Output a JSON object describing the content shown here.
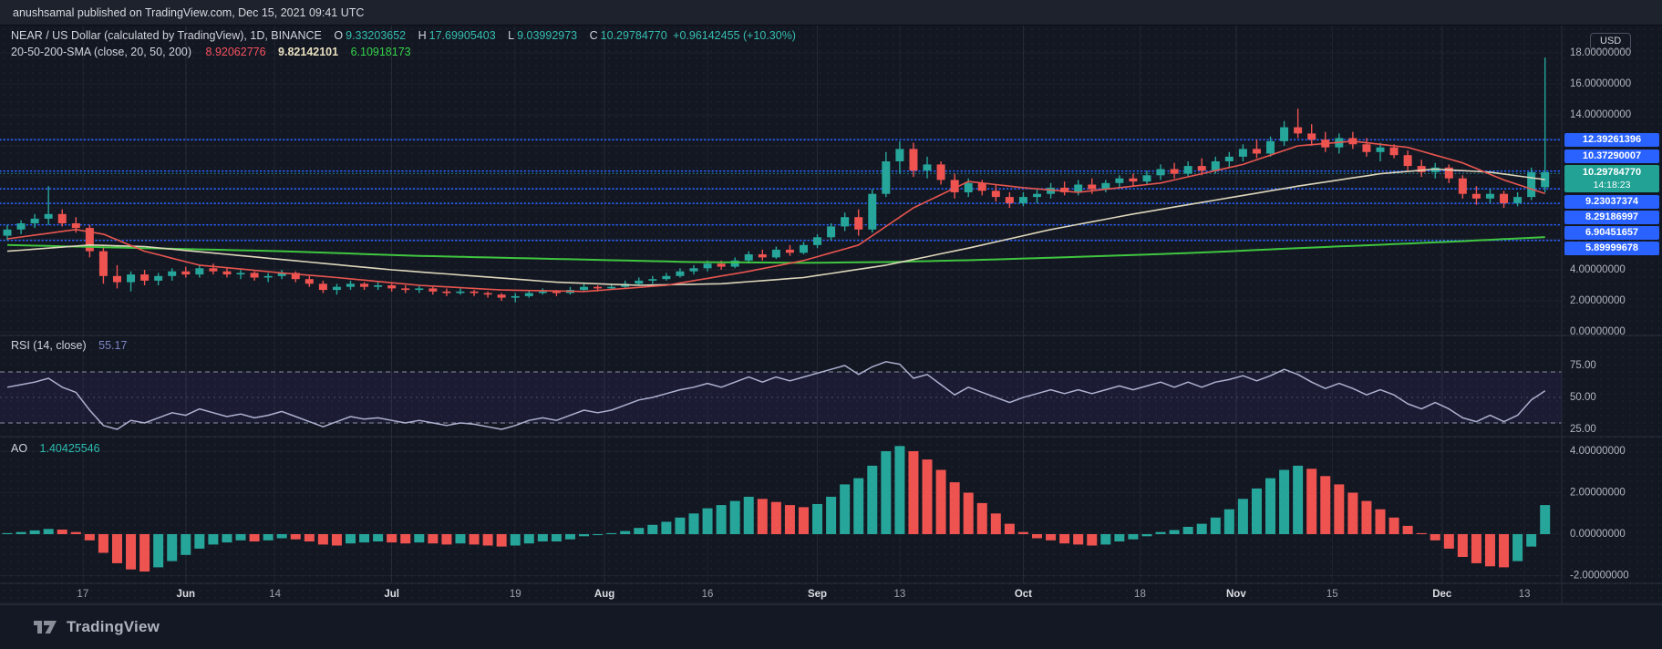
{
  "meta": {
    "published_line": "anushsamal published on TradingView.com, Dec 15, 2021 09:41 UTC"
  },
  "header": {
    "symbol_title": "NEAR / US Dollar (calculated by TradingView), 1D, BINANCE",
    "o_label": "O",
    "o": "9.33203652",
    "h_label": "H",
    "h": "17.69905403",
    "l_label": "L",
    "l": "9.03992973",
    "c_label": "C",
    "c": "10.29784770",
    "change": "+0.96142455 (+10.30%)",
    "sma_title": "20-50-200-SMA (close, 20, 50, 200)",
    "sma20": "8.92062776",
    "sma50": "9.82142101",
    "sma200": "6.10918173"
  },
  "axis": {
    "currency_button": "USD",
    "price_labels": [
      {
        "text": "18.00000000",
        "value": 18
      },
      {
        "text": "16.00000000",
        "value": 16
      },
      {
        "text": "14.00000000",
        "value": 14
      },
      {
        "text": "4.00000000",
        "value": 4
      },
      {
        "text": "2.00000000",
        "value": 2
      },
      {
        "text": "0.00000000",
        "value": 0
      }
    ],
    "price_lines": [
      {
        "text": "12.39261396",
        "value": 12.39261396
      },
      {
        "text": "10.37290007",
        "value": 10.37290007
      },
      {
        "text": "9.23037374",
        "value": 9.23037374
      },
      {
        "text": "8.29186997",
        "value": 8.29186997
      },
      {
        "text": "6.90451657",
        "value": 6.90451657
      },
      {
        "text": "5.89999678",
        "value": 5.89999678
      }
    ],
    "current_price": {
      "text": "10.29784770",
      "countdown": "14:18:23",
      "value": 10.2978477
    }
  },
  "rsi_pane": {
    "title": "RSI (14, close)",
    "value_text": "55.17",
    "value": 55.17,
    "levels": [
      {
        "text": "75.00",
        "value": 75
      },
      {
        "text": "50.00",
        "value": 50
      },
      {
        "text": "25.00",
        "value": 25
      }
    ],
    "band": [
      30,
      70
    ]
  },
  "ao_pane": {
    "title": "AO",
    "value_text": "1.40425546",
    "value": 1.40425546,
    "levels": [
      {
        "text": "4.00000000",
        "value": 4
      },
      {
        "text": "2.00000000",
        "value": 2
      },
      {
        "text": "0.00000000",
        "value": 0
      },
      {
        "text": "-2.00000000",
        "value": -2
      }
    ]
  },
  "footer": {
    "brand": "TradingView"
  },
  "colors": {
    "up": "#26a69a",
    "down": "#ef5350",
    "sma20": "#e8554e",
    "sma50": "#ddd6ba",
    "sma200": "#3fc63f",
    "rsi_line": "#aeb1cf",
    "line_blue": "#2962ff",
    "current_badge": "#21a295",
    "axis_text": "#b2b5be",
    "tick_text": "#9da2ab",
    "tick_month_text": "#dcdee3",
    "grid": "rgba(255,255,255,0.045)",
    "grid_month": "rgba(255,255,255,0.08)",
    "separator": "#2a2e39",
    "rsi_band_fill": "rgba(124,94,255,0.08)",
    "rsi_band_edge": "#8a8da1"
  },
  "chart_data": {
    "type": "candlestick",
    "title": "NEAR / US Dollar (calculated by TradingView), 1D, BINANCE",
    "interval": "1D (grouped ~2 days per drawn candle)",
    "visible_price_range": [
      0,
      18.6
    ],
    "ohlc_last_day": {
      "open": 9.33203652,
      "high": 17.69905403,
      "low": 9.03992973,
      "close": 10.2978477,
      "change": "+0.96142455 (+10.30%)"
    },
    "horizontal_lines": [
      12.39261396,
      10.37290007,
      9.23037374,
      8.29186997,
      6.90451657,
      5.89999678
    ],
    "x_ticks": [
      {
        "text": "17",
        "day": 11,
        "bold": false
      },
      {
        "text": "Jun",
        "day": 26,
        "bold": true
      },
      {
        "text": "14",
        "day": 39,
        "bold": false
      },
      {
        "text": "Jul",
        "day": 56,
        "bold": true
      },
      {
        "text": "19",
        "day": 74,
        "bold": false
      },
      {
        "text": "Aug",
        "day": 87,
        "bold": true
      },
      {
        "text": "16",
        "day": 102,
        "bold": false
      },
      {
        "text": "Sep",
        "day": 118,
        "bold": true
      },
      {
        "text": "13",
        "day": 130,
        "bold": false
      },
      {
        "text": "Oct",
        "day": 148,
        "bold": true
      },
      {
        "text": "18",
        "day": 165,
        "bold": false
      },
      {
        "text": "Nov",
        "day": 179,
        "bold": true
      },
      {
        "text": "15",
        "day": 193,
        "bold": false
      },
      {
        "text": "Dec",
        "day": 209,
        "bold": true
      },
      {
        "text": "13",
        "day": 221,
        "bold": false
      }
    ],
    "candles": [
      [
        6.2,
        6.9,
        5.9,
        6.6
      ],
      [
        6.6,
        7.2,
        6.3,
        7.0
      ],
      [
        7.0,
        7.6,
        6.7,
        7.3
      ],
      [
        7.3,
        9.4,
        6.9,
        7.6
      ],
      [
        7.6,
        7.9,
        6.8,
        7.0
      ],
      [
        7.0,
        7.4,
        6.4,
        6.7
      ],
      [
        6.7,
        6.9,
        4.8,
        5.2
      ],
      [
        5.2,
        5.6,
        3.1,
        3.6
      ],
      [
        3.6,
        4.3,
        2.8,
        3.2
      ],
      [
        3.2,
        3.9,
        2.6,
        3.7
      ],
      [
        3.7,
        4.0,
        3.0,
        3.3
      ],
      [
        3.3,
        3.8,
        3.0,
        3.6
      ],
      [
        3.6,
        4.1,
        3.3,
        3.9
      ],
      [
        3.9,
        4.2,
        3.5,
        3.7
      ],
      [
        3.7,
        4.3,
        3.5,
        4.1
      ],
      [
        4.1,
        4.4,
        3.7,
        3.9
      ],
      [
        3.9,
        4.1,
        3.5,
        3.7
      ],
      [
        3.7,
        4.0,
        3.4,
        3.8
      ],
      [
        3.8,
        3.9,
        3.3,
        3.5
      ],
      [
        3.5,
        3.8,
        3.2,
        3.6
      ],
      [
        3.6,
        4.0,
        3.4,
        3.8
      ],
      [
        3.8,
        3.9,
        3.2,
        3.4
      ],
      [
        3.4,
        3.6,
        2.9,
        3.1
      ],
      [
        3.1,
        3.3,
        2.5,
        2.7
      ],
      [
        2.7,
        3.1,
        2.4,
        2.9
      ],
      [
        2.9,
        3.3,
        2.7,
        3.1
      ],
      [
        3.1,
        3.2,
        2.7,
        2.9
      ],
      [
        2.9,
        3.2,
        2.7,
        3.0
      ],
      [
        3.0,
        3.1,
        2.6,
        2.8
      ],
      [
        2.8,
        3.0,
        2.5,
        2.7
      ],
      [
        2.7,
        3.0,
        2.5,
        2.8
      ],
      [
        2.8,
        2.9,
        2.4,
        2.6
      ],
      [
        2.6,
        2.8,
        2.3,
        2.5
      ],
      [
        2.5,
        2.8,
        2.4,
        2.6
      ],
      [
        2.6,
        2.7,
        2.3,
        2.5
      ],
      [
        2.5,
        2.6,
        2.2,
        2.4
      ],
      [
        2.4,
        2.5,
        2.0,
        2.2
      ],
      [
        2.2,
        2.5,
        1.9,
        2.3
      ],
      [
        2.3,
        2.7,
        2.2,
        2.5
      ],
      [
        2.5,
        2.8,
        2.4,
        2.6
      ],
      [
        2.6,
        2.7,
        2.3,
        2.5
      ],
      [
        2.5,
        2.9,
        2.4,
        2.7
      ],
      [
        2.7,
        3.1,
        2.6,
        2.9
      ],
      [
        2.9,
        3.0,
        2.6,
        2.8
      ],
      [
        2.8,
        3.1,
        2.7,
        2.9
      ],
      [
        2.9,
        3.3,
        2.8,
        3.1
      ],
      [
        3.1,
        3.5,
        3.0,
        3.3
      ],
      [
        3.3,
        3.6,
        3.1,
        3.4
      ],
      [
        3.4,
        3.8,
        3.3,
        3.6
      ],
      [
        3.6,
        4.1,
        3.5,
        3.9
      ],
      [
        3.9,
        4.3,
        3.7,
        4.1
      ],
      [
        4.1,
        4.6,
        3.9,
        4.4
      ],
      [
        4.4,
        4.6,
        4.0,
        4.2
      ],
      [
        4.2,
        4.8,
        4.1,
        4.6
      ],
      [
        4.6,
        5.2,
        4.4,
        5.0
      ],
      [
        5.0,
        5.3,
        4.6,
        4.8
      ],
      [
        4.8,
        5.5,
        4.7,
        5.3
      ],
      [
        5.3,
        5.6,
        4.9,
        5.1
      ],
      [
        5.1,
        5.8,
        5.0,
        5.6
      ],
      [
        5.6,
        6.3,
        5.4,
        6.1
      ],
      [
        6.1,
        7.0,
        5.9,
        6.8
      ],
      [
        6.8,
        7.7,
        6.5,
        7.4
      ],
      [
        7.4,
        7.9,
        6.2,
        6.6
      ],
      [
        6.6,
        9.2,
        6.4,
        8.9
      ],
      [
        8.9,
        11.6,
        8.7,
        11.0
      ],
      [
        11.0,
        12.3,
        10.2,
        11.8
      ],
      [
        11.8,
        12.2,
        10.0,
        10.4
      ],
      [
        10.4,
        11.3,
        9.9,
        10.8
      ],
      [
        10.8,
        11.0,
        9.5,
        9.8
      ],
      [
        9.8,
        10.2,
        8.6,
        9.0
      ],
      [
        9.0,
        9.9,
        8.7,
        9.6
      ],
      [
        9.6,
        9.8,
        8.8,
        9.1
      ],
      [
        9.1,
        9.5,
        8.4,
        8.7
      ],
      [
        8.7,
        9.0,
        8.0,
        8.3
      ],
      [
        8.3,
        9.0,
        8.1,
        8.7
      ],
      [
        8.7,
        9.2,
        8.3,
        8.9
      ],
      [
        8.9,
        9.6,
        8.6,
        9.3
      ],
      [
        9.3,
        9.7,
        8.8,
        9.0
      ],
      [
        9.0,
        9.8,
        8.8,
        9.5
      ],
      [
        9.5,
        9.9,
        8.9,
        9.2
      ],
      [
        9.2,
        9.8,
        9.0,
        9.6
      ],
      [
        9.6,
        10.1,
        9.3,
        9.9
      ],
      [
        9.9,
        10.2,
        9.4,
        9.7
      ],
      [
        9.7,
        10.4,
        9.5,
        10.1
      ],
      [
        10.1,
        10.8,
        9.8,
        10.5
      ],
      [
        10.5,
        10.9,
        9.9,
        10.2
      ],
      [
        10.2,
        11.0,
        10.0,
        10.7
      ],
      [
        10.7,
        11.2,
        10.1,
        10.4
      ],
      [
        10.4,
        11.3,
        10.2,
        11.0
      ],
      [
        11.0,
        11.6,
        10.6,
        11.3
      ],
      [
        11.3,
        12.1,
        11.0,
        11.8
      ],
      [
        11.8,
        12.4,
        11.2,
        11.5
      ],
      [
        11.5,
        12.6,
        11.3,
        12.3
      ],
      [
        12.3,
        13.6,
        12.0,
        13.2
      ],
      [
        13.2,
        14.4,
        12.5,
        12.8
      ],
      [
        12.8,
        13.4,
        12.0,
        12.4
      ],
      [
        12.4,
        12.9,
        11.6,
        11.9
      ],
      [
        11.9,
        12.8,
        11.5,
        12.5
      ],
      [
        12.5,
        12.9,
        11.8,
        12.1
      ],
      [
        12.1,
        12.5,
        11.3,
        11.6
      ],
      [
        11.6,
        12.2,
        11.0,
        11.9
      ],
      [
        11.9,
        12.1,
        11.2,
        11.4
      ],
      [
        11.4,
        11.7,
        10.4,
        10.7
      ],
      [
        10.7,
        11.1,
        10.0,
        10.3
      ],
      [
        10.3,
        10.9,
        9.9,
        10.6
      ],
      [
        10.6,
        10.8,
        9.6,
        9.9
      ],
      [
        9.9,
        10.1,
        8.6,
        8.9
      ],
      [
        8.9,
        9.4,
        8.2,
        8.6
      ],
      [
        8.6,
        9.2,
        8.3,
        8.9
      ],
      [
        8.9,
        9.1,
        8.0,
        8.3
      ],
      [
        8.3,
        9.0,
        8.1,
        8.7
      ],
      [
        8.7,
        10.6,
        8.5,
        10.3
      ],
      [
        9.33,
        17.7,
        9.0,
        10.3
      ]
    ],
    "rsi": [
      58,
      60,
      62,
      65,
      58,
      54,
      40,
      28,
      25,
      32,
      30,
      34,
      38,
      36,
      41,
      38,
      35,
      37,
      34,
      36,
      39,
      35,
      31,
      27,
      31,
      35,
      33,
      34,
      32,
      30,
      32,
      30,
      28,
      30,
      29,
      27,
      25,
      28,
      32,
      34,
      32,
      36,
      40,
      38,
      40,
      44,
      48,
      50,
      53,
      56,
      58,
      61,
      58,
      62,
      66,
      62,
      66,
      63,
      66,
      69,
      72,
      75,
      68,
      74,
      78,
      76,
      65,
      68,
      60,
      52,
      58,
      54,
      50,
      46,
      50,
      53,
      56,
      53,
      56,
      53,
      56,
      59,
      56,
      59,
      62,
      58,
      62,
      58,
      62,
      64,
      67,
      63,
      67,
      72,
      68,
      62,
      57,
      61,
      57,
      52,
      56,
      52,
      45,
      41,
      46,
      41,
      34,
      31,
      36,
      31,
      36,
      48,
      55.17
    ],
    "ao": [
      0.05,
      0.1,
      0.18,
      0.25,
      0.22,
      0.1,
      -0.3,
      -0.9,
      -1.4,
      -1.7,
      -1.8,
      -1.6,
      -1.3,
      -1.0,
      -0.7,
      -0.5,
      -0.4,
      -0.3,
      -0.35,
      -0.3,
      -0.2,
      -0.25,
      -0.35,
      -0.5,
      -0.55,
      -0.45,
      -0.4,
      -0.35,
      -0.4,
      -0.45,
      -0.4,
      -0.45,
      -0.5,
      -0.45,
      -0.5,
      -0.55,
      -0.6,
      -0.55,
      -0.45,
      -0.35,
      -0.35,
      -0.25,
      -0.1,
      -0.05,
      0.05,
      0.15,
      0.3,
      0.45,
      0.6,
      0.8,
      1.0,
      1.25,
      1.4,
      1.6,
      1.8,
      1.7,
      1.55,
      1.4,
      1.3,
      1.45,
      1.8,
      2.4,
      2.7,
      3.3,
      4.0,
      4.25,
      4.0,
      3.6,
      3.1,
      2.5,
      2.0,
      1.5,
      1.0,
      0.5,
      0.1,
      -0.2,
      -0.3,
      -0.45,
      -0.5,
      -0.55,
      -0.5,
      -0.35,
      -0.25,
      -0.1,
      0.1,
      0.2,
      0.35,
      0.5,
      0.8,
      1.2,
      1.7,
      2.2,
      2.7,
      3.1,
      3.3,
      3.15,
      2.8,
      2.4,
      2.0,
      1.6,
      1.2,
      0.8,
      0.4,
      0.05,
      -0.3,
      -0.7,
      -1.1,
      -1.4,
      -1.55,
      -1.6,
      -1.3,
      -0.6,
      1.4
    ],
    "sma20_anchors": [
      [
        0,
        6.0
      ],
      [
        5,
        6.6
      ],
      [
        7,
        6.3
      ],
      [
        10,
        5.2
      ],
      [
        14,
        4.3
      ],
      [
        20,
        3.8
      ],
      [
        24,
        3.5
      ],
      [
        30,
        3.0
      ],
      [
        36,
        2.7
      ],
      [
        42,
        2.6
      ],
      [
        48,
        3.0
      ],
      [
        54,
        3.9
      ],
      [
        58,
        4.6
      ],
      [
        62,
        5.6
      ],
      [
        66,
        8.0
      ],
      [
        70,
        9.7
      ],
      [
        74,
        9.3
      ],
      [
        78,
        9.0
      ],
      [
        84,
        9.6
      ],
      [
        90,
        10.8
      ],
      [
        94,
        12.0
      ],
      [
        98,
        12.3
      ],
      [
        102,
        11.9
      ],
      [
        106,
        10.9
      ],
      [
        109,
        9.8
      ],
      [
        112,
        8.92
      ]
    ],
    "sma50_anchors": [
      [
        0,
        5.2
      ],
      [
        6,
        5.6
      ],
      [
        10,
        5.5
      ],
      [
        16,
        5.0
      ],
      [
        22,
        4.5
      ],
      [
        28,
        4.0
      ],
      [
        34,
        3.6
      ],
      [
        40,
        3.2
      ],
      [
        46,
        3.0
      ],
      [
        52,
        3.1
      ],
      [
        58,
        3.5
      ],
      [
        64,
        4.3
      ],
      [
        70,
        5.4
      ],
      [
        76,
        6.6
      ],
      [
        82,
        7.6
      ],
      [
        88,
        8.5
      ],
      [
        94,
        9.4
      ],
      [
        100,
        10.2
      ],
      [
        104,
        10.5
      ],
      [
        108,
        10.3
      ],
      [
        112,
        9.82
      ]
    ],
    "sma200_anchors": [
      [
        0,
        5.6
      ],
      [
        10,
        5.4
      ],
      [
        20,
        5.2
      ],
      [
        30,
        4.9
      ],
      [
        40,
        4.7
      ],
      [
        50,
        4.5
      ],
      [
        58,
        4.45
      ],
      [
        64,
        4.5
      ],
      [
        70,
        4.62
      ],
      [
        76,
        4.78
      ],
      [
        82,
        4.95
      ],
      [
        88,
        5.15
      ],
      [
        94,
        5.4
      ],
      [
        100,
        5.62
      ],
      [
        106,
        5.85
      ],
      [
        112,
        6.11
      ]
    ]
  }
}
